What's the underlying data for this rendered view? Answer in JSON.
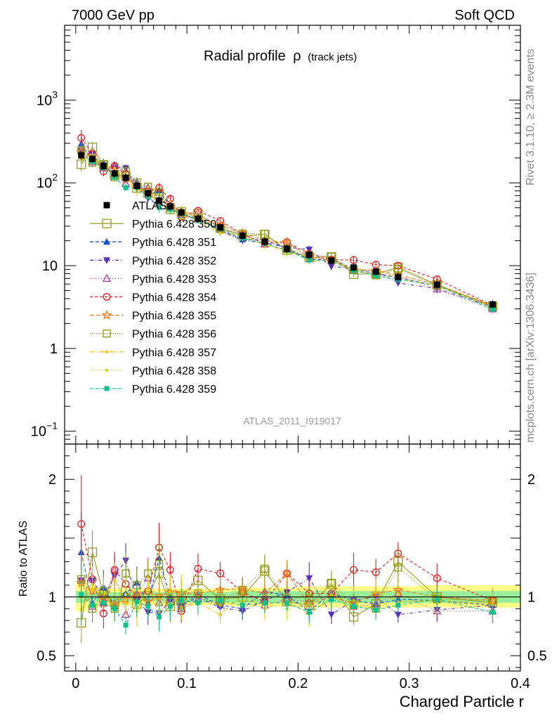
{
  "header": {
    "energy_label": "7000 GeV pp",
    "process_label": "Soft QCD"
  },
  "side_labels": {
    "rivet": "Rivet 3.1.10, ≥ 2.3M events",
    "mcplots": "mcplots.cern.ch [arXiv:1306.3436]"
  },
  "analysis_id": "ATLAS_2011_I919017",
  "colors": {
    "data": "#000000",
    "p350": "#9a9a1e",
    "p351": "#1f4fc8",
    "p352": "#5a2fb6",
    "p353": "#b338a8",
    "p354": "#e41a1c",
    "p355": "#ef7b1c",
    "p356": "#8a9a0e",
    "p357": "#f2c40c",
    "p358": "#d2d40e",
    "p359": "#15c08a",
    "band_yellow": "#ffff88",
    "band_green": "#99ee99"
  },
  "chart_data": {
    "type": "line",
    "title_main": "Radial profile",
    "title_symbol": "ρ",
    "title_sub": "(track jets)",
    "xlabel": "Charged Particle r",
    "ylabel_ratio": "Ratio to ATLAS",
    "xlim": [
      -0.01,
      0.4
    ],
    "ylim_main": [
      0.07,
      8000
    ],
    "ylim_ratio": [
      0.37,
      2.3
    ],
    "x_ticks": [
      "0",
      "0.1",
      "0.2",
      "0.3",
      "0.4"
    ],
    "x_tick_values": [
      0,
      0.1,
      0.2,
      0.3,
      0.4
    ],
    "y_ticks_main": [
      {
        "value": 1000,
        "base": "10",
        "exp": "3"
      },
      {
        "value": 100,
        "base": "10",
        "exp": "2"
      },
      {
        "value": 10,
        "base": "10",
        "exp": ""
      },
      {
        "value": 1,
        "base": "1",
        "exp": ""
      },
      {
        "value": 0.1,
        "base": "10",
        "exp": "−1"
      }
    ],
    "y_ticks_ratio": [
      "2",
      "1",
      "0.5"
    ],
    "y_tick_values_ratio": [
      2,
      1,
      0.5
    ],
    "x": [
      0.005,
      0.015,
      0.025,
      0.035,
      0.045,
      0.055,
      0.065,
      0.075,
      0.085,
      0.095,
      0.11,
      0.13,
      0.15,
      0.17,
      0.19,
      0.21,
      0.23,
      0.25,
      0.27,
      0.29,
      0.325,
      0.375
    ],
    "data": {
      "name": "ATLAS",
      "values": [
        215,
        195,
        160,
        130,
        115,
        92,
        75,
        61,
        52,
        44,
        37,
        29,
        23,
        19.5,
        16,
        13.5,
        11.5,
        9.5,
        8.5,
        7.3,
        5.9,
        3.4
      ],
      "band_lo": [
        0.88,
        0.91,
        0.92,
        0.93,
        0.93,
        0.93,
        0.93,
        0.93,
        0.93,
        0.93,
        0.93,
        0.93,
        0.92,
        0.92,
        0.92,
        0.91,
        0.91,
        0.91,
        0.91,
        0.91,
        0.91,
        0.91
      ],
      "band_hi": [
        1.12,
        1.09,
        1.08,
        1.07,
        1.07,
        1.07,
        1.07,
        1.07,
        1.07,
        1.07,
        1.07,
        1.07,
        1.08,
        1.08,
        1.08,
        1.09,
        1.09,
        1.09,
        1.09,
        1.09,
        1.1,
        1.1
      ],
      "green_lo": [
        0.95,
        0.96,
        0.96,
        0.96,
        0.96,
        0.96,
        0.96,
        0.96,
        0.96,
        0.96,
        0.96,
        0.96,
        0.95,
        0.95,
        0.95,
        0.95,
        0.95,
        0.95,
        0.95,
        0.95,
        0.95,
        0.95
      ],
      "green_hi": [
        1.05,
        1.04,
        1.04,
        1.04,
        1.04,
        1.04,
        1.04,
        1.04,
        1.04,
        1.04,
        1.04,
        1.04,
        1.05,
        1.05,
        1.05,
        1.05,
        1.05,
        1.05,
        1.05,
        1.05,
        1.05,
        1.05
      ]
    },
    "series": [
      {
        "key": "p350",
        "name": "Pythia 6.428 350",
        "marker": "open-square",
        "dash": "",
        "big": true,
        "ratio": [
          0.78,
          1.38,
          1.02,
          0.96,
          1.05,
          0.94,
          1.01,
          1.2,
          0.92,
          1.01,
          1.14,
          0.98,
          1.0,
          1.22,
          0.96,
          0.93,
          1.11,
          0.83,
          0.94,
          1.3,
          1.0,
          0.95
        ]
      },
      {
        "key": "p351",
        "name": "Pythia 6.428 351",
        "marker": "triangle",
        "dash": "5,3",
        "ratio": [
          1.38,
          0.95,
          1.08,
          0.92,
          1.03,
          1.12,
          0.95,
          1.33,
          1.0,
          0.93,
          1.02,
          0.93,
          0.9,
          1.05,
          1.01,
          0.88,
          1.03,
          0.97,
          0.94,
          0.98,
          0.97,
          0.93
        ]
      },
      {
        "key": "p352",
        "name": "Pythia 6.428 352",
        "marker": "triangle-down",
        "dash": "5,3,1,3",
        "ratio": [
          1.14,
          1.14,
          0.99,
          1.18,
          1.31,
          0.97,
          0.87,
          0.86,
          0.97,
          0.92,
          1.0,
          0.91,
          0.88,
          0.97,
          1.04,
          1.16,
          0.85,
          0.97,
          1.0,
          0.85,
          0.89,
          0.93
        ]
      },
      {
        "key": "p353",
        "name": "Pythia 6.428 353",
        "marker": "open-triangle",
        "dash": "1,3",
        "ratio": [
          1.14,
          0.92,
          0.95,
          1.23,
          0.85,
          1.02,
          1.16,
          0.95,
          0.98,
          0.9,
          0.98,
          0.96,
          1.05,
          0.93,
          0.98,
          0.96,
          1.02,
          0.92,
          0.94,
          1.03,
          0.88,
          0.88
        ]
      },
      {
        "key": "p354",
        "name": "Pythia 6.428 354",
        "marker": "open-circle",
        "dash": "4,3",
        "ratio": [
          1.62,
          1.15,
          0.86,
          1.23,
          1.11,
          1.0,
          1.05,
          1.42,
          1.23,
          0.88,
          1.24,
          1.2,
          1.04,
          0.96,
          1.2,
          1.03,
          1.03,
          1.23,
          1.21,
          1.37,
          1.16,
          0.97
        ]
      },
      {
        "key": "p355",
        "name": "Pythia 6.428 355",
        "marker": "open-star",
        "dash": "6,3",
        "ratio": [
          1.12,
          1.05,
          0.98,
          0.94,
          0.98,
          1.03,
          0.96,
          1.01,
          1.04,
          1.03,
          1.03,
          1.06,
          1.07,
          1.03,
          1.2,
          0.94,
          1.0,
          0.95,
          1.03,
          1.06,
          1.0,
          0.97
        ]
      },
      {
        "key": "p356",
        "name": "Pythia 6.428 356",
        "marker": "open-square-small",
        "dash": "1,2",
        "ratio": [
          1.15,
          0.9,
          1.05,
          0.9,
          1.2,
          1.1,
          1.2,
          1.28,
          0.96,
          0.92,
          1.03,
          0.97,
          1.06,
          1.24,
          0.99,
          0.99,
          1.12,
          0.93,
          0.9,
          1.25,
          0.98,
          0.97
        ]
      },
      {
        "key": "p357",
        "name": "Pythia 6.428 357",
        "marker": "small-circle",
        "dash": "7,3,1,3",
        "ratio": [
          0.89,
          1.07,
          1.0,
          1.14,
          0.94,
          0.88,
          1.07,
          0.87,
          1.04,
          0.91,
          0.95,
          0.85,
          1.03,
          0.9,
          0.97,
          0.85,
          1.0,
          0.93,
          1.05,
          0.96,
          0.97,
          0.94
        ]
      },
      {
        "key": "p358",
        "name": "Pythia 6.428 358",
        "marker": "small-circle",
        "dash": "1,2",
        "ratio": [
          1.0,
          1.1,
          1.03,
          0.9,
          1.02,
          0.92,
          1.07,
          0.93,
          0.94,
          1.05,
          1.0,
          0.93,
          0.97,
          0.94,
          0.9,
          0.94,
          1.02,
          0.97,
          0.89,
          1.02,
          0.95,
          0.93
        ]
      },
      {
        "key": "p359",
        "name": "Pythia 6.428 359",
        "marker": "square",
        "dash": "5,3",
        "ratio": [
          1.02,
          0.93,
          0.95,
          0.9,
          0.76,
          0.96,
          0.92,
          0.83,
          0.92,
          0.97,
          0.95,
          0.97,
          0.93,
          0.95,
          0.95,
          0.87,
          0.98,
          0.92,
          0.89,
          0.93,
          0.98,
          0.87
        ]
      }
    ]
  }
}
